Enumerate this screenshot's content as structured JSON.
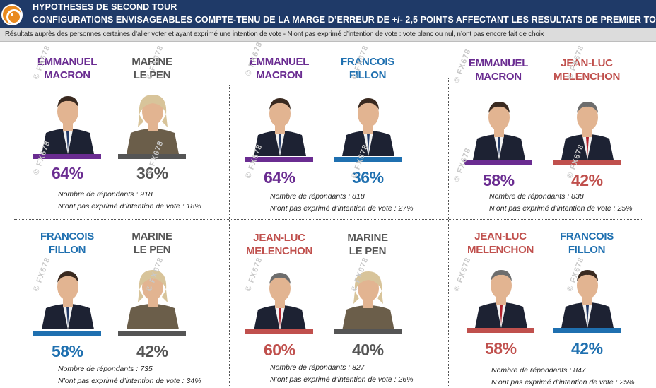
{
  "header": {
    "title": "HYPOTHESES DE SECOND TOUR",
    "subtitle": "CONFIGURATIONS ENVISAGEABLES COMPTE-TENU DE LA MARGE D’ERREUR DE +/- 2,5 POINTS AFFECTANT LES RESULTATS DE PREMIER TOUR",
    "note": "Résultats auprès des personnes certaines d’aller voter et ayant exprimé une intention de vote  - N’ont pas exprimé d’intention de vote : vote blanc ou nul, n’ont pas encore fait de choix"
  },
  "watermark": "© FX678",
  "colors": {
    "macron": "#6a2c91",
    "lepen": "#555555",
    "fillon": "#1f70b0",
    "melenchon": "#c0504d"
  },
  "panels": [
    {
      "left": {
        "name1": "EMMANUEL",
        "name2": "MACRON",
        "pct": "64%",
        "color": "#6a2c91"
      },
      "right": {
        "name1": "MARINE",
        "name2": "LE PEN",
        "pct": "36%",
        "color": "#555555"
      },
      "respondents": "Nombre de répondants : 918",
      "no_intent": "N’ont pas exprimé d’intention de vote : 18%"
    },
    {
      "left": {
        "name1": "EMMANUEL",
        "name2": "MACRON",
        "pct": "64%",
        "color": "#6a2c91"
      },
      "right": {
        "name1": "FRANCOIS",
        "name2": "FILLON",
        "pct": "36%",
        "color": "#1f70b0"
      },
      "respondents": "Nombre de répondants : 818",
      "no_intent": "N’ont pas exprimé d’intention de vote : 27%"
    },
    {
      "left": {
        "name1": "EMMANUEL",
        "name2": "MACRON",
        "pct": "58%",
        "color": "#6a2c91"
      },
      "right": {
        "name1": "JEAN-LUC",
        "name2": "MELENCHON",
        "pct": "42%",
        "color": "#c0504d"
      },
      "respondents": "Nombre de répondants : 838",
      "no_intent": "N’ont pas exprimé d’intention de vote : 25%"
    },
    {
      "left": {
        "name1": "FRANCOIS",
        "name2": "FILLON",
        "pct": "58%",
        "color": "#1f70b0"
      },
      "right": {
        "name1": "MARINE",
        "name2": "LE PEN",
        "pct": "42%",
        "color": "#555555"
      },
      "respondents": "Nombre de répondants : 735",
      "no_intent": "N’ont pas exprimé d’intention de vote : 34%"
    },
    {
      "left": {
        "name1": "JEAN-LUC",
        "name2": "MELENCHON",
        "pct": "60%",
        "color": "#c0504d"
      },
      "right": {
        "name1": "MARINE",
        "name2": "LE PEN",
        "pct": "40%",
        "color": "#555555"
      },
      "respondents": "Nombre de répondants : 827",
      "no_intent": "N’ont pas exprimé d’intention de vote : 26%"
    },
    {
      "left": {
        "name1": "JEAN-LUC",
        "name2": "MELENCHON",
        "pct": "58%",
        "color": "#c0504d"
      },
      "right": {
        "name1": "FRANCOIS",
        "name2": "FILLON",
        "pct": "42%",
        "color": "#1f70b0"
      },
      "respondents": "Nombre de répondants : 847",
      "no_intent": "N’ont pas exprimé d’intention de vote : 25%"
    }
  ]
}
